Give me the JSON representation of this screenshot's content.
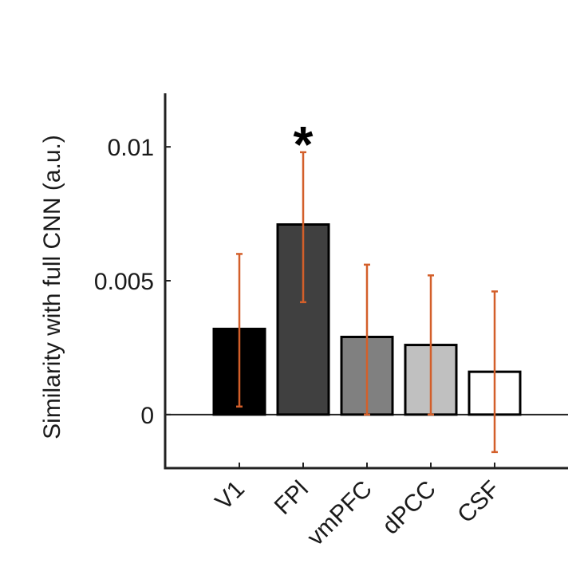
{
  "chart_data": {
    "type": "bar",
    "ylabel": "Similarity with full CNN (a.u.)",
    "xlabel": "",
    "ylim": [
      -0.002,
      0.012
    ],
    "yticks": [
      0,
      0.005,
      0.01
    ],
    "ytick_labels": [
      "0",
      "0.005",
      "0.01"
    ],
    "categories": [
      "V1",
      "FPl",
      "vmPFC",
      "dPCC",
      "CSF"
    ],
    "values": [
      0.0032,
      0.0071,
      0.0029,
      0.0026,
      0.0016
    ],
    "error_low": [
      0.0003,
      0.0042,
      0.0,
      0.0,
      -0.0014
    ],
    "error_high": [
      0.006,
      0.0098,
      0.0056,
      0.0052,
      0.0046
    ],
    "bar_colors": [
      "#000000",
      "#404040",
      "#808080",
      "#c0c0c0",
      "#ffffff"
    ],
    "error_color": "#d35f2a",
    "annotations": [
      {
        "category": "FPl",
        "text": "*"
      }
    ],
    "grid": false
  }
}
